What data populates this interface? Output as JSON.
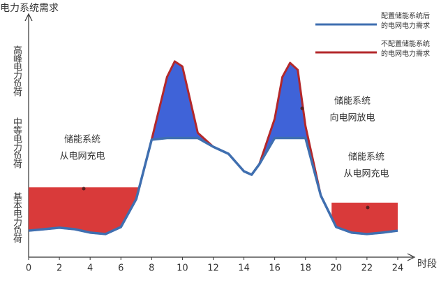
{
  "chart_data": {
    "type": "line",
    "y_title": "电力系统需求",
    "x_title": "时段",
    "y_categories": [
      "高峰电力负荷",
      "中等电力负荷",
      "基本电力负荷"
    ],
    "x": [
      0,
      1,
      2,
      3,
      4,
      5,
      6,
      7,
      8,
      9,
      9.5,
      10,
      11,
      12,
      13,
      14,
      14.5,
      15,
      16,
      16.5,
      17,
      17.5,
      18,
      19,
      20,
      21,
      22,
      23,
      24
    ],
    "series": [
      {
        "name": "配置储能系统后的电网电力需求",
        "color": "#3f6fb0",
        "values": [
          10.9,
          11.5,
          12.1,
          11.5,
          10.1,
          9.5,
          12.4,
          23.9,
          48.3,
          49,
          49,
          49,
          49,
          45.4,
          42.5,
          35.3,
          33.9,
          38.2,
          49,
          49,
          49,
          49,
          49,
          25.3,
          12.4,
          10.1,
          9.5,
          10.1,
          10.9
        ]
      },
      {
        "name": "不配置储能系统的电网电力需求",
        "color": "#b3282b",
        "values": [
          10.9,
          11.5,
          12.1,
          11.5,
          10.1,
          9.5,
          12.4,
          23.9,
          48.3,
          74.1,
          80.5,
          78.4,
          51.1,
          45.4,
          42.5,
          35.3,
          33.9,
          38.2,
          56.9,
          74.1,
          79.9,
          77.0,
          54.0,
          25.3,
          12.4,
          10.1,
          9.5,
          10.1,
          10.9
        ]
      }
    ],
    "charging_areas": [
      {
        "x": [
          0,
          7.2
        ],
        "level": 28.7,
        "color": "#d93a3a"
      },
      {
        "x": [
          19.7,
          24
        ],
        "level": 22.4,
        "color": "#d93a3a"
      }
    ],
    "discharge_color": "#3f63d8",
    "annotations": [
      {
        "text": [
          "储能系统",
          "从电网充电"
        ]
      },
      {
        "text": [
          "储能系统",
          "向电网放电"
        ]
      },
      {
        "text": [
          "储能系统",
          "从电网充电"
        ]
      }
    ],
    "xlim": [
      0,
      24.5
    ],
    "ylim": [
      0,
      100
    ],
    "xticks": [
      0,
      2,
      4,
      6,
      8,
      10,
      12,
      14,
      16,
      18,
      20,
      22,
      24
    ]
  }
}
